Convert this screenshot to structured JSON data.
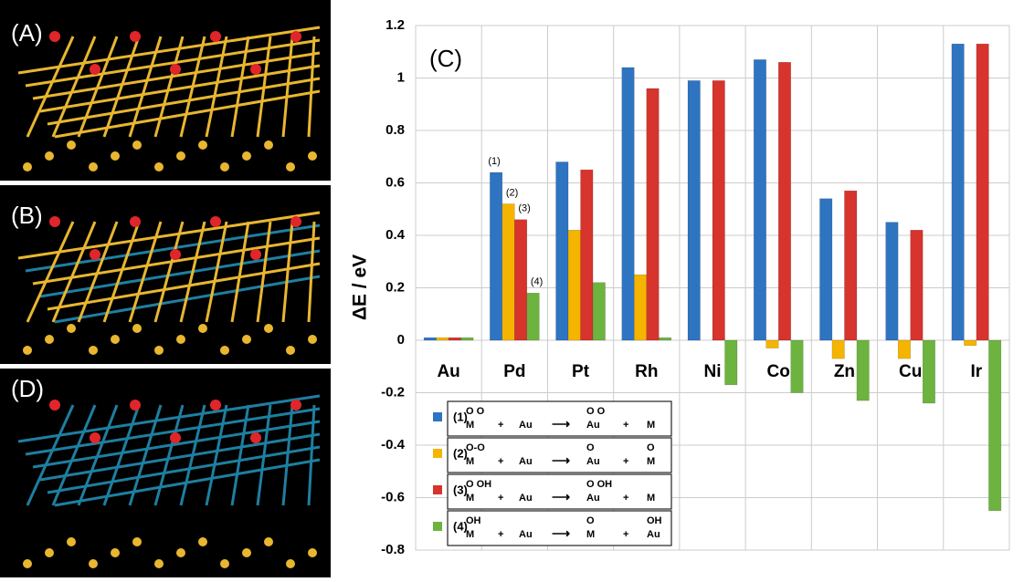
{
  "panels": [
    {
      "label": "(A)"
    },
    {
      "label": "(B)"
    },
    {
      "label": "(D)"
    }
  ],
  "chart_data": {
    "type": "bar",
    "panel_label": "(C)",
    "y_label": "ΔE / eV",
    "categories": [
      "Au",
      "Pd",
      "Pt",
      "Rh",
      "Ni",
      "Co",
      "Zn",
      "Cu",
      "Ir"
    ],
    "ylim": [
      -0.8,
      1.2
    ],
    "yticks": [
      1.2,
      1,
      0.8,
      0.6,
      0.4,
      0.2,
      0,
      -0.2,
      -0.4,
      -0.6,
      -0.8
    ],
    "grid": true,
    "annotated_category": "Pd",
    "series": [
      {
        "name": "(1)",
        "color": "#2f74c1",
        "values": [
          0.01,
          0.64,
          0.68,
          1.04,
          0.99,
          1.07,
          0.54,
          0.45,
          1.13
        ],
        "scheme": [
          {
            "top": "O O",
            "main": "M"
          },
          {
            "main": "+"
          },
          {
            "main": "Au"
          },
          {
            "main": "⟶"
          },
          {
            "top": "O O",
            "main": "Au"
          },
          {
            "main": "+"
          },
          {
            "main": "M"
          }
        ]
      },
      {
        "name": "(2)",
        "color": "#f4b400",
        "values": [
          0.01,
          0.52,
          0.42,
          0.25,
          0,
          -0.03,
          -0.07,
          -0.07,
          -0.02
        ],
        "scheme": [
          {
            "top": "O-O",
            "main": "M"
          },
          {
            "main": "+"
          },
          {
            "main": "Au"
          },
          {
            "main": "⟶"
          },
          {
            "top": "O",
            "main": "Au"
          },
          {
            "main": "+"
          },
          {
            "top": "O",
            "main": "M"
          }
        ]
      },
      {
        "name": "(3)",
        "color": "#d6342c",
        "values": [
          0.01,
          0.46,
          0.65,
          0.96,
          0.99,
          1.06,
          0.57,
          0.42,
          1.13
        ],
        "scheme": [
          {
            "top": "O OH",
            "main": "M"
          },
          {
            "main": "+"
          },
          {
            "main": "Au"
          },
          {
            "main": "⟶"
          },
          {
            "top": "O OH",
            "main": "Au"
          },
          {
            "main": "+"
          },
          {
            "main": "M"
          }
        ]
      },
      {
        "name": "(4)",
        "color": "#6db33f",
        "values": [
          0.01,
          0.18,
          0.22,
          0.01,
          -0.17,
          -0.2,
          -0.23,
          -0.24,
          -0.65
        ],
        "scheme": [
          {
            "top": "OH",
            "main": "M"
          },
          {
            "main": "+"
          },
          {
            "main": "Au"
          },
          {
            "main": "⟶"
          },
          {
            "top": "O",
            "main": "M"
          },
          {
            "main": "+"
          },
          {
            "top": "OH",
            "main": "Au"
          }
        ]
      }
    ]
  }
}
